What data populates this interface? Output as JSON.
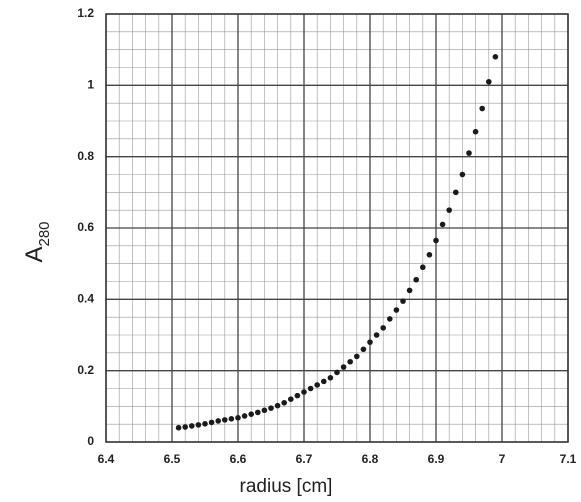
{
  "chart_data": {
    "type": "scatter",
    "xlabel": "radius [cm]",
    "ylabel": "A",
    "ylabel_subscript": "280",
    "color": "#1a1a1a",
    "grid": true,
    "xlim": [
      6.4,
      7.1
    ],
    "ylim": [
      0,
      1.2
    ],
    "xticks": [
      6.4,
      6.5,
      6.6,
      6.7,
      6.8,
      6.9,
      {
        "value": 7,
        "label": "7"
      },
      7.1
    ],
    "yticks": [
      0,
      0.2,
      0.4,
      0.6,
      0.8,
      {
        "value": 1,
        "label": "1"
      },
      1.2
    ],
    "x_minor_grid": [
      6.42,
      6.44,
      6.46,
      6.48,
      6.52,
      6.54,
      6.56,
      6.58,
      6.62,
      6.64,
      6.66,
      6.68,
      6.72,
      6.74,
      6.76,
      6.78,
      6.82,
      6.84,
      6.86,
      6.88,
      6.92,
      6.94,
      6.96,
      6.98,
      7.02,
      7.04,
      7.06,
      7.08
    ],
    "y_minor_grid": [
      0.05,
      0.1,
      0.15,
      0.25,
      0.3,
      0.35,
      0.45,
      0.5,
      0.55,
      0.65,
      0.7,
      0.75,
      0.85,
      0.9,
      0.95,
      1.05,
      1.1,
      1.15
    ],
    "x": [
      6.51,
      6.52,
      6.53,
      6.54,
      6.55,
      6.56,
      6.57,
      6.58,
      6.59,
      6.6,
      6.61,
      6.62,
      6.63,
      6.64,
      6.65,
      6.66,
      6.67,
      6.68,
      6.69,
      6.7,
      6.71,
      6.72,
      6.73,
      6.74,
      6.75,
      6.76,
      6.77,
      6.78,
      6.79,
      6.8,
      6.81,
      6.82,
      6.83,
      6.84,
      6.85,
      6.86,
      6.87,
      6.88,
      6.89,
      6.9,
      6.91,
      6.92,
      6.93,
      6.94,
      6.95,
      6.96,
      6.97,
      6.98,
      6.99
    ],
    "values": [
      0.04,
      0.042,
      0.045,
      0.048,
      0.051,
      0.055,
      0.059,
      0.062,
      0.065,
      0.068,
      0.073,
      0.078,
      0.083,
      0.089,
      0.095,
      0.102,
      0.11,
      0.12,
      0.13,
      0.14,
      0.15,
      0.16,
      0.17,
      0.18,
      0.195,
      0.21,
      0.225,
      0.24,
      0.26,
      0.28,
      0.3,
      0.32,
      0.345,
      0.37,
      0.395,
      0.425,
      0.455,
      0.49,
      0.525,
      0.565,
      0.61,
      0.65,
      0.7,
      0.75,
      0.81,
      0.87,
      0.935,
      1.01,
      1.08
    ]
  }
}
